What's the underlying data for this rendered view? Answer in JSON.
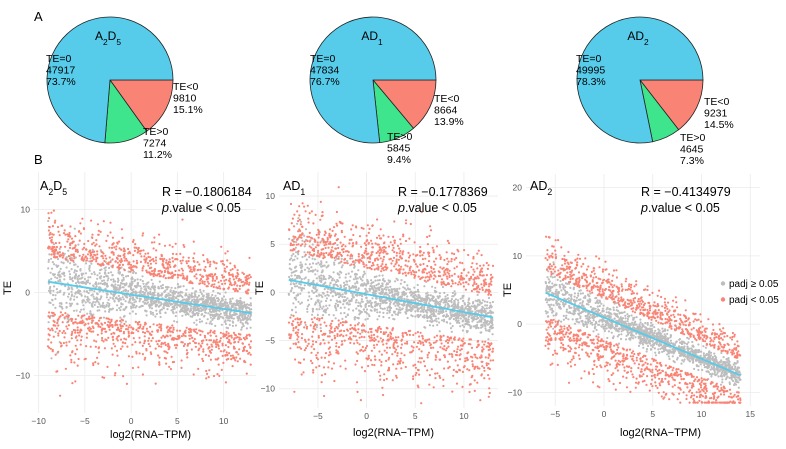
{
  "figure": {
    "panel_a_label": "A",
    "panel_b_label": "B"
  },
  "colors": {
    "te_zero": "#56CBEA",
    "te_neg": "#F98475",
    "te_pos": "#3FE58D",
    "sig": "#F98475",
    "nonsig": "#BDBDBD",
    "fit_line": "#56CBEA",
    "grid": "#EBEBEB"
  },
  "chart_data": [
    {
      "type": "pie",
      "title_base": "A",
      "title_sub1": "2",
      "title_mid": "D",
      "title_sub2": "5",
      "slices": [
        {
          "label": "TE=0",
          "count": "47917",
          "percent": "73.7%",
          "value": 73.7,
          "key": "te_zero"
        },
        {
          "label": "TE<0",
          "count": "9810",
          "percent": "15.1%",
          "value": 15.1,
          "key": "te_neg"
        },
        {
          "label": "TE>0",
          "count": "7274",
          "percent": "11.2%",
          "value": 11.2,
          "key": "te_pos"
        }
      ]
    },
    {
      "type": "pie",
      "title_base": "AD",
      "title_sub1": "1",
      "title_mid": "",
      "title_sub2": "",
      "slices": [
        {
          "label": "TE=0",
          "count": "47834",
          "percent": "76.7%",
          "value": 76.7,
          "key": "te_zero"
        },
        {
          "label": "TE<0",
          "count": "8664",
          "percent": "13.9%",
          "value": 13.9,
          "key": "te_neg"
        },
        {
          "label": "TE>0",
          "count": "5845",
          "percent": "9.4%",
          "value": 9.4,
          "key": "te_pos"
        }
      ]
    },
    {
      "type": "pie",
      "title_base": "AD",
      "title_sub1": "2",
      "title_mid": "",
      "title_sub2": "",
      "slices": [
        {
          "label": "TE=0",
          "count": "49995",
          "percent": "78.3%",
          "value": 78.3,
          "key": "te_zero"
        },
        {
          "label": "TE<0",
          "count": "9231",
          "percent": "14.5%",
          "value": 14.5,
          "key": "te_neg"
        },
        {
          "label": "TE>0",
          "count": "4645",
          "percent": "7.3%",
          "value": 7.3,
          "key": "te_pos"
        }
      ]
    },
    {
      "type": "scatter",
      "title_base": "A",
      "title_sub1": "2",
      "title_mid": "D",
      "title_sub2": "5",
      "r_text": "R = −0.1806184",
      "p_italic": "p",
      "p_rest": ".value < 0.05",
      "xlabel": "log2(RNA−TPM)",
      "ylabel": "TE",
      "xlim": [
        -10.5,
        13.5
      ],
      "ylim": [
        -14.5,
        14.5
      ],
      "xticks": [
        -10,
        -5,
        0,
        5,
        10
      ],
      "xtick_labels": [
        "−10",
        "−5",
        "0",
        "5",
        "10"
      ],
      "yticks": [
        -10,
        0,
        10
      ],
      "ytick_labels": [
        "−10",
        "0",
        "10"
      ],
      "fit": {
        "x": [
          -9,
          13
        ],
        "y": [
          1.3,
          -2.5
        ]
      }
    },
    {
      "type": "scatter",
      "title_base": "AD",
      "title_sub1": "1",
      "title_mid": "",
      "title_sub2": "",
      "r_text": "R = −0.1778369",
      "p_italic": "p",
      "p_rest": ".value < 0.05",
      "xlabel": "log2(RNA−TPM)",
      "ylabel": "TE",
      "xlim": [
        -9,
        13.5
      ],
      "ylim": [
        -12,
        12.5
      ],
      "xticks": [
        -5,
        0,
        5,
        10
      ],
      "xtick_labels": [
        "−5",
        "0",
        "5",
        "10"
      ],
      "yticks": [
        -10,
        -5,
        0,
        5,
        10
      ],
      "ytick_labels": [
        "−10",
        "−5",
        "0",
        "5",
        "10"
      ],
      "fit": {
        "x": [
          -8,
          13
        ],
        "y": [
          1.3,
          -2.6
        ]
      }
    },
    {
      "type": "scatter",
      "title_base": "AD",
      "title_sub1": "2",
      "title_mid": "",
      "title_sub2": "",
      "r_text": "R = −0.4134979",
      "p_italic": "p",
      "p_rest": ".value < 0.05",
      "xlabel": "log2(RNA−TPM)",
      "ylabel": "TE",
      "xlim": [
        -8,
        16
      ],
      "ylim": [
        -12,
        22
      ],
      "xticks": [
        -5,
        0,
        5,
        10,
        15
      ],
      "xtick_labels": [
        "−5",
        "0",
        "5",
        "10",
        "15"
      ],
      "yticks": [
        -10,
        0,
        10,
        20
      ],
      "ytick_labels": [
        "−10",
        "0",
        "10",
        "20"
      ],
      "fit": {
        "x": [
          -6,
          14
        ],
        "y": [
          4.6,
          -7.5
        ]
      },
      "legend": [
        {
          "label": "padj ≥ 0.05",
          "key": "nonsig"
        },
        {
          "label": "padj < 0.05",
          "key": "sig"
        }
      ]
    }
  ]
}
